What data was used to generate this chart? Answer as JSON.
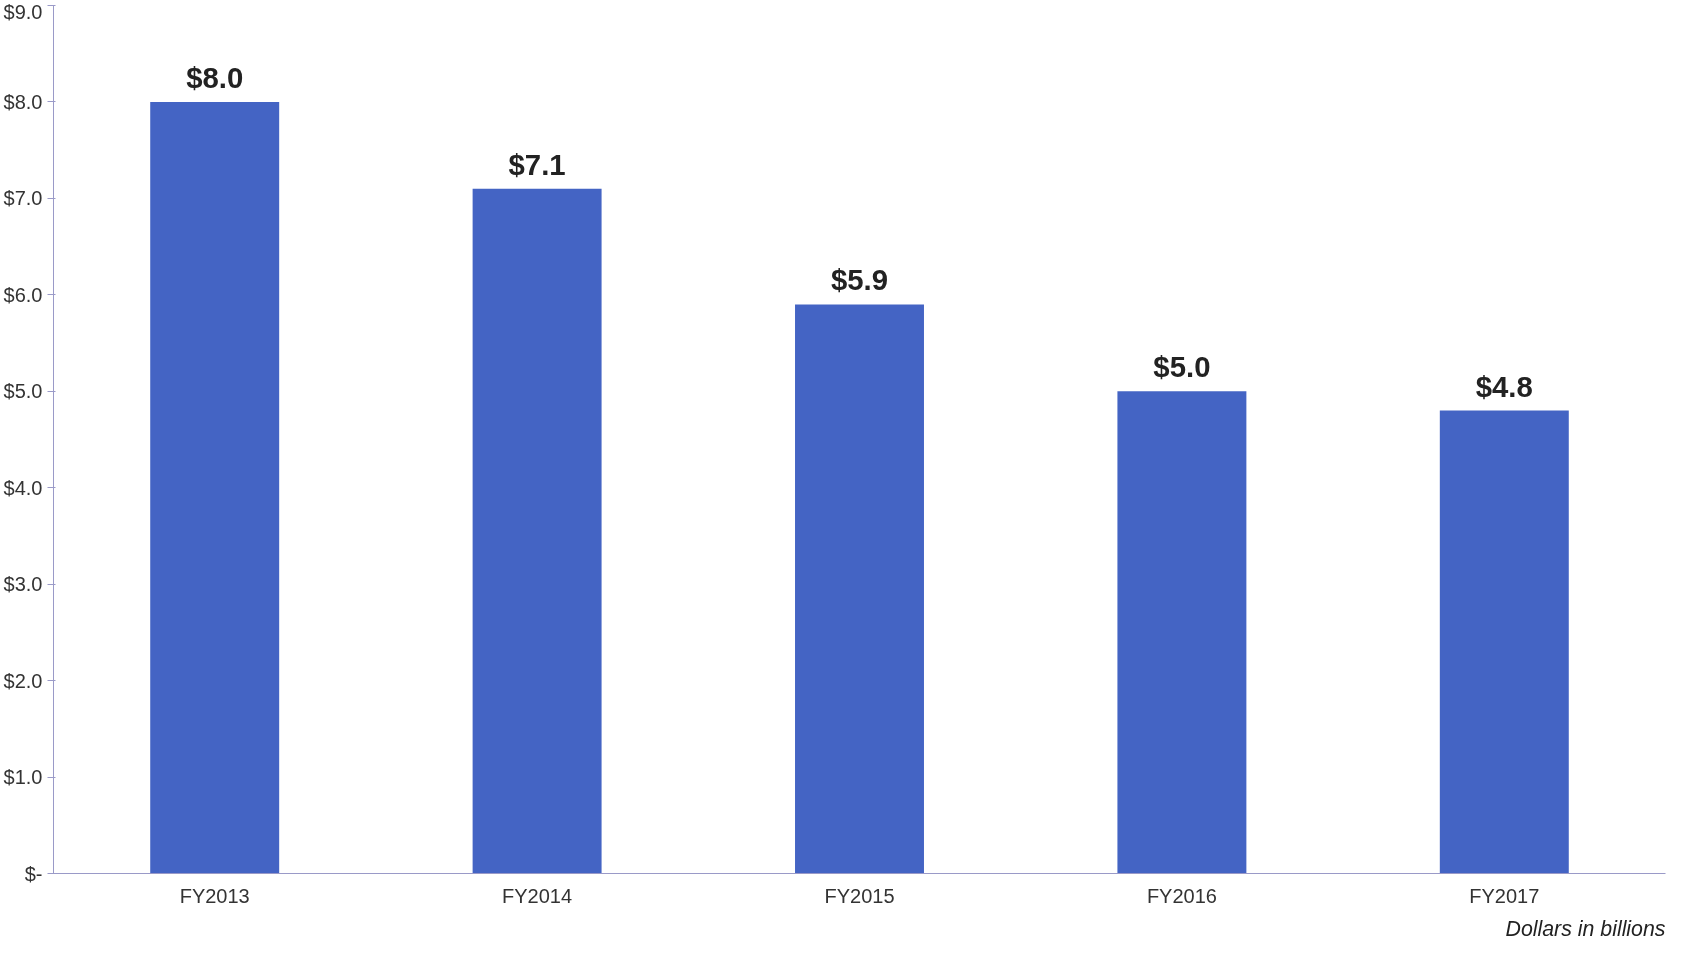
{
  "chart_data": {
    "type": "bar",
    "categories": [
      "FY2013",
      "FY2014",
      "FY2015",
      "FY2016",
      "FY2017"
    ],
    "values": [
      8.0,
      7.1,
      5.9,
      5.0,
      4.8
    ],
    "color": "#4464c4",
    "value_labels": [
      "$8.0",
      "$7.1",
      "$5.9",
      "$5.0",
      "$4.8"
    ],
    "ylim": [
      0,
      9
    ],
    "yticks": [
      {
        "value": 0,
        "label": "$-"
      },
      {
        "value": 1,
        "label": "$1.0"
      },
      {
        "value": 2,
        "label": "$2.0"
      },
      {
        "value": 3,
        "label": "$3.0"
      },
      {
        "value": 4,
        "label": "$4.0"
      },
      {
        "value": 5,
        "label": "$5.0"
      },
      {
        "value": 6,
        "label": "$6.0"
      },
      {
        "value": 7,
        "label": "$7.0"
      },
      {
        "value": 8,
        "label": "$8.0"
      },
      {
        "value": 9,
        "label": "$9.0"
      }
    ],
    "grid": false,
    "annotations": [
      "Dollars in billions"
    ]
  }
}
